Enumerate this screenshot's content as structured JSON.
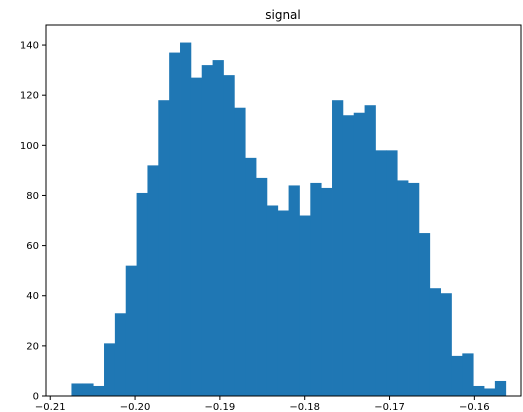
{
  "chart_data": {
    "type": "bar",
    "title": "signal",
    "xlabel": "",
    "ylabel": "",
    "xlim": [
      -0.2105,
      -0.1545
    ],
    "ylim": [
      0,
      148
    ],
    "bin_start": -0.2075,
    "bin_width": 0.00128,
    "values": [
      5,
      5,
      4,
      21,
      33,
      52,
      81,
      92,
      118,
      137,
      141,
      127,
      132,
      134,
      128,
      115,
      95,
      87,
      76,
      74,
      84,
      72,
      85,
      83,
      118,
      112,
      113,
      116,
      98,
      98,
      86,
      85,
      65,
      43,
      41,
      16,
      17,
      4,
      3,
      6
    ],
    "x_ticks": [
      {
        "value": -0.21,
        "label": "−0.21"
      },
      {
        "value": -0.2,
        "label": "−0.20"
      },
      {
        "value": -0.19,
        "label": "−0.19"
      },
      {
        "value": -0.18,
        "label": "−0.18"
      },
      {
        "value": -0.17,
        "label": "−0.17"
      },
      {
        "value": -0.16,
        "label": "−0.16"
      }
    ],
    "y_ticks": [
      {
        "value": 0,
        "label": "0"
      },
      {
        "value": 20,
        "label": "20"
      },
      {
        "value": 40,
        "label": "40"
      },
      {
        "value": 60,
        "label": "60"
      },
      {
        "value": 80,
        "label": "80"
      },
      {
        "value": 100,
        "label": "100"
      },
      {
        "value": 120,
        "label": "120"
      },
      {
        "value": 140,
        "label": "140"
      }
    ],
    "bar_color": "#1f77b4",
    "grid": false,
    "legend": "none"
  }
}
